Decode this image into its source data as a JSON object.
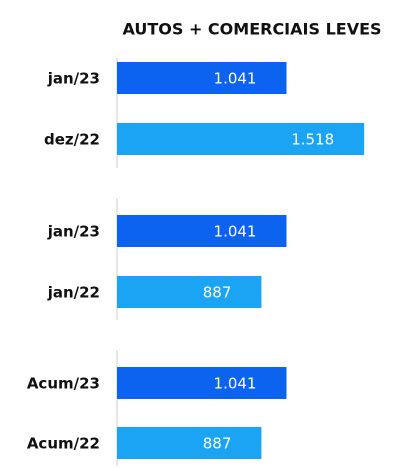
{
  "chart_data": {
    "type": "bar",
    "orientation": "horizontal",
    "title": "AUTOS + COMERCIAIS LEVES",
    "categories": [
      "jan/23",
      "dez/22",
      "jan/23",
      "jan/22",
      "Acum/23",
      "Acum/22"
    ],
    "values": [
      1041,
      1518,
      1041,
      887,
      1041,
      887
    ],
    "value_labels": [
      "1.041",
      "1.518",
      "1.041",
      "887",
      "1.041",
      "887"
    ],
    "colors": [
      "#0b63f0",
      "#1ba4f4",
      "#0b63f0",
      "#1ba4f4",
      "#0b63f0",
      "#1ba4f4"
    ],
    "xlim": [
      0,
      1560
    ]
  }
}
